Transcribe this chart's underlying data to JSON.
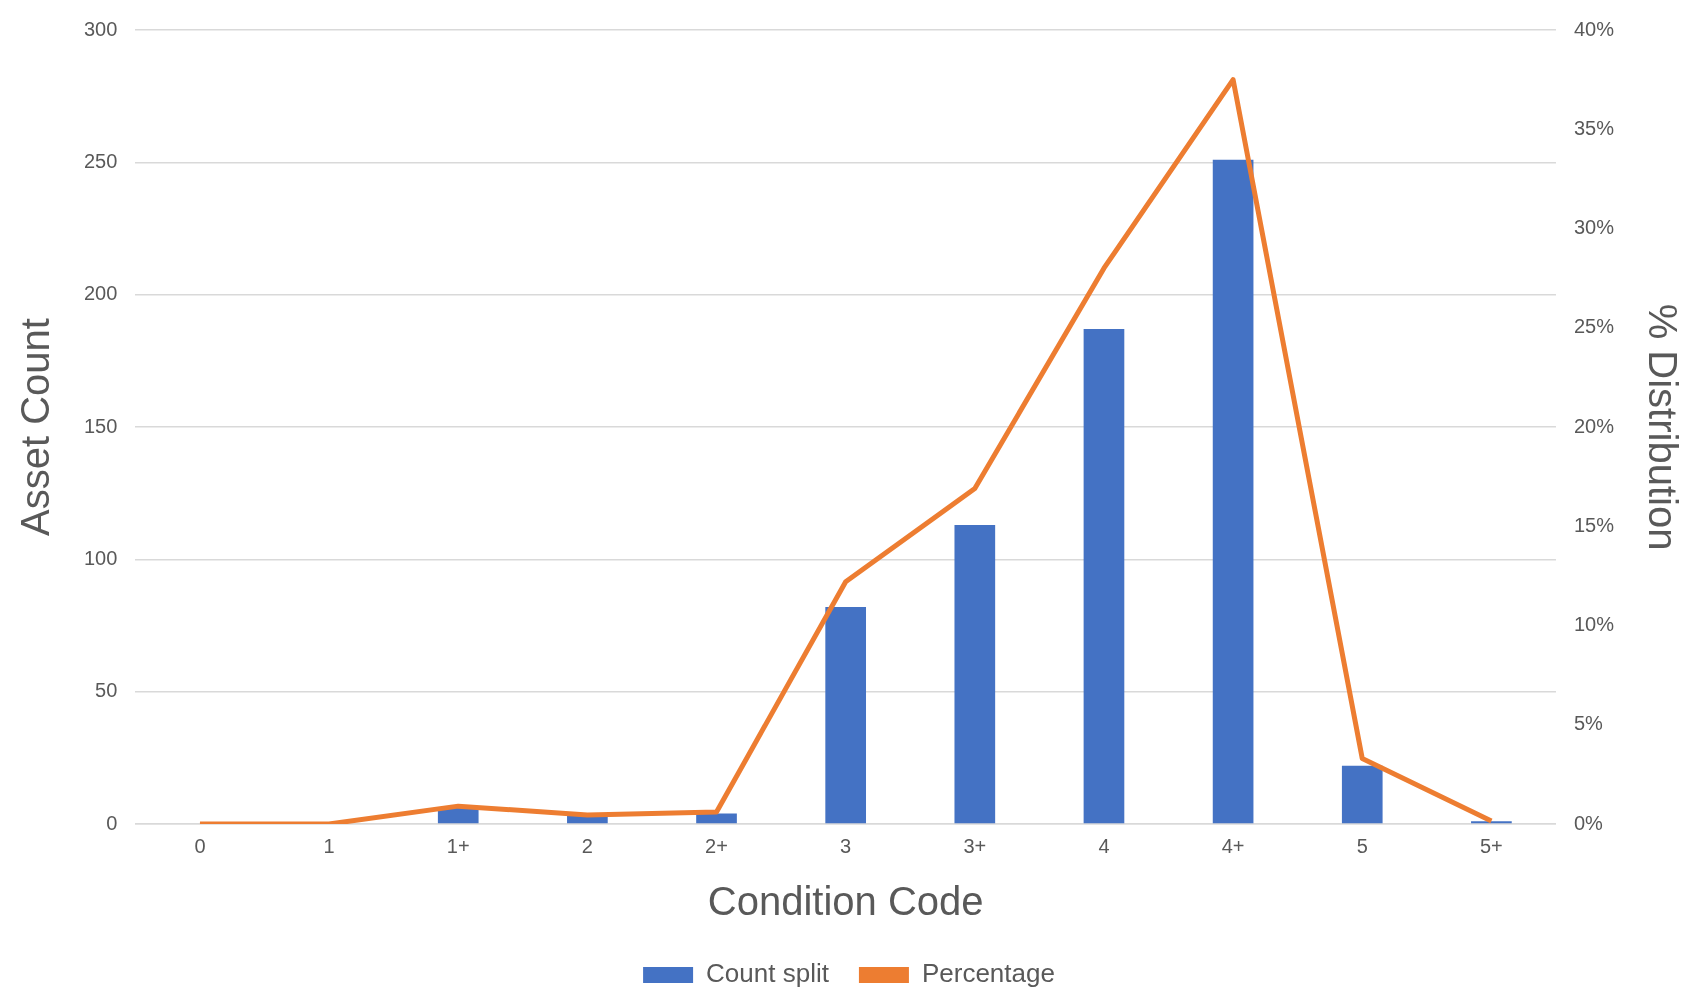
{
  "chart_data": {
    "type": "bar",
    "xlabel": "Condition Code",
    "ylabel": "Asset Count",
    "y2label": "% Distribution",
    "categories": [
      "0",
      "1",
      "1+",
      "2",
      "2+",
      "3",
      "3+",
      "4",
      "4+",
      "5",
      "5+"
    ],
    "series": [
      {
        "name": "Count split",
        "color": "#4472c4",
        "values": [
          0,
          0,
          6,
          3,
          4,
          82,
          113,
          187,
          251,
          22,
          1
        ]
      },
      {
        "name": "Percentage",
        "type": "line",
        "axis": "y2",
        "color": "#ed7d31",
        "marker": "none",
        "values": [
          0,
          0,
          0.9,
          0.45,
          0.6,
          12.2,
          16.9,
          28.0,
          37.5,
          3.3,
          0.15
        ]
      }
    ],
    "ylim": [
      0,
      300
    ],
    "yticks": [
      0,
      50,
      100,
      150,
      200,
      250,
      300
    ],
    "y2lim": [
      0,
      40
    ],
    "y2ticks": [
      {
        "value": 0,
        "label": "0%"
      },
      {
        "value": 5,
        "label": "5%"
      },
      {
        "value": 10,
        "label": "10%"
      },
      {
        "value": 15,
        "label": "15%"
      },
      {
        "value": 20,
        "label": "20%"
      },
      {
        "value": 25,
        "label": "25%"
      },
      {
        "value": 30,
        "label": "30%"
      },
      {
        "value": 35,
        "label": "35%"
      },
      {
        "value": 40,
        "label": "40%"
      }
    ],
    "grid": "y",
    "legend": "bottom"
  }
}
